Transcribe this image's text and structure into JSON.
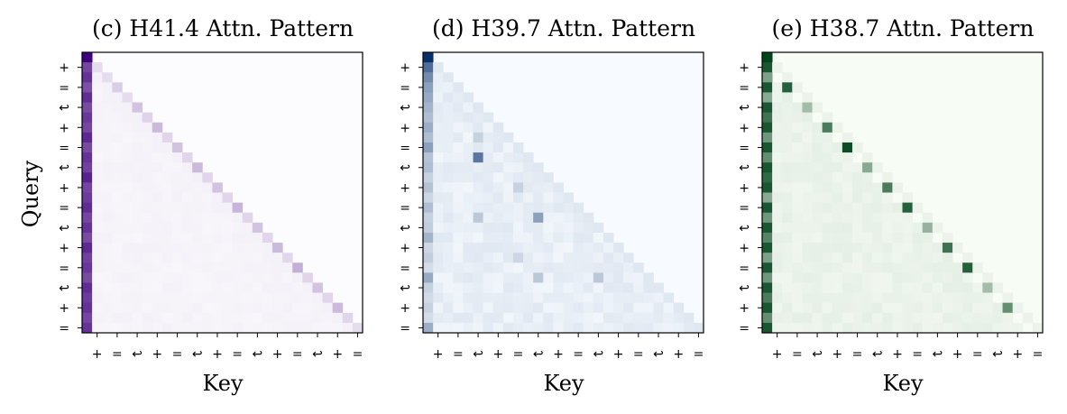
{
  "chart_data": [
    {
      "type": "heatmap",
      "title": "(c) H41.4 Attn. Pattern",
      "xlabel": "Key",
      "ylabel": "Query",
      "colormap": "Purples",
      "colors": {
        "light": "#fcfbfd",
        "dark": "#3f007d"
      },
      "size": 28,
      "y_tick_labels": [
        "+",
        "=",
        "↩",
        "+",
        "=",
        "↩",
        "+",
        "=",
        "↩",
        "+",
        "=",
        "↩",
        "+",
        "="
      ],
      "x_tick_labels": [
        "+",
        "=",
        "↩",
        "+",
        "=",
        "↩",
        "+",
        "=",
        "↩",
        "+",
        "=",
        "↩",
        "+",
        "="
      ],
      "pattern": {
        "first_column": [
          1.0,
          0.72,
          0.8,
          0.68,
          0.82,
          0.7,
          0.78,
          0.72,
          0.84,
          0.7,
          0.8,
          0.74,
          0.86,
          0.72,
          0.76,
          0.82,
          0.72,
          0.8,
          0.7,
          0.84,
          0.74,
          0.78,
          0.7,
          0.82,
          0.76,
          0.8,
          0.72,
          0.8
        ],
        "diagonal": [
          0.0,
          0.12,
          0.12,
          0.18,
          0.12,
          0.22,
          0.16,
          0.26,
          0.15,
          0.22,
          0.15,
          0.26,
          0.15,
          0.22,
          0.15,
          0.28,
          0.15,
          0.22,
          0.15,
          0.26,
          0.14,
          0.3,
          0.15,
          0.22,
          0.15,
          0.26,
          0.15,
          0.12
        ],
        "background": 0.02
      }
    },
    {
      "type": "heatmap",
      "title": "(d) H39.7 Attn. Pattern",
      "xlabel": "Key",
      "ylabel": "",
      "colormap": "Blues",
      "colors": {
        "light": "#f7fbff",
        "dark": "#08306b"
      },
      "size": 28,
      "y_tick_labels": [
        "+",
        "=",
        "↩",
        "+",
        "=",
        "↩",
        "+",
        "=",
        "↩",
        "+",
        "=",
        "↩",
        "+",
        "="
      ],
      "x_tick_labels": [
        "+",
        "=",
        "↩",
        "+",
        "=",
        "↩",
        "+",
        "=",
        "↩",
        "+",
        "=",
        "↩",
        "+",
        "="
      ],
      "pattern": {
        "first_column": [
          1.0,
          0.7,
          0.55,
          0.45,
          0.4,
          0.35,
          0.3,
          0.38,
          0.3,
          0.45,
          0.28,
          0.3,
          0.2,
          0.28,
          0.18,
          0.3,
          0.2,
          0.22,
          0.35,
          0.18,
          0.22,
          0.15,
          0.4,
          0.2,
          0.16,
          0.2,
          0.15,
          0.38
        ],
        "highlights": [
          {
            "row": 10,
            "col": 5,
            "value": 0.65
          },
          {
            "row": 16,
            "col": 11,
            "value": 0.45
          },
          {
            "row": 22,
            "col": 11,
            "value": 0.25
          },
          {
            "row": 22,
            "col": 17,
            "value": 0.25
          },
          {
            "row": 16,
            "col": 5,
            "value": 0.25
          },
          {
            "row": 8,
            "col": 5,
            "value": 0.2
          },
          {
            "row": 13,
            "col": 9,
            "value": 0.2
          },
          {
            "row": 20,
            "col": 9,
            "value": 0.18
          }
        ],
        "lower_triangle": 0.08,
        "background": 0.0
      }
    },
    {
      "type": "heatmap",
      "title": "(e) H38.7 Attn. Pattern",
      "xlabel": "Key",
      "ylabel": "",
      "colormap": "Greens",
      "colors": {
        "light": "#f7fcf5",
        "dark": "#00441b"
      },
      "size": 28,
      "y_tick_labels": [
        "+",
        "=",
        "↩",
        "+",
        "=",
        "↩",
        "+",
        "=",
        "↩",
        "+",
        "=",
        "↩",
        "+",
        "="
      ],
      "x_tick_labels": [
        "+",
        "=",
        "↩",
        "+",
        "=",
        "↩",
        "+",
        "=",
        "↩",
        "+",
        "=",
        "↩",
        "+",
        "="
      ],
      "pattern": {
        "first_column": [
          1.0,
          0.9,
          0.5,
          0.9,
          0.45,
          0.9,
          0.75,
          0.9,
          0.55,
          0.9,
          0.6,
          0.9,
          0.8,
          0.9,
          0.45,
          0.9,
          0.55,
          0.9,
          0.65,
          0.9,
          0.5,
          0.9,
          0.55,
          0.9,
          0.7,
          0.9,
          0.6,
          0.9
        ],
        "diagonal_offset_one": [
          0.0,
          0.35,
          0.0,
          0.85,
          0.0,
          0.35,
          0.0,
          0.7,
          0.0,
          0.95,
          0.0,
          0.45,
          0.0,
          0.7,
          0.0,
          0.85,
          0.0,
          0.4,
          0.0,
          0.75,
          0.0,
          0.85,
          0.0,
          0.35,
          0.0,
          0.6,
          0.0,
          0.0
        ],
        "background": 0.03
      }
    }
  ]
}
